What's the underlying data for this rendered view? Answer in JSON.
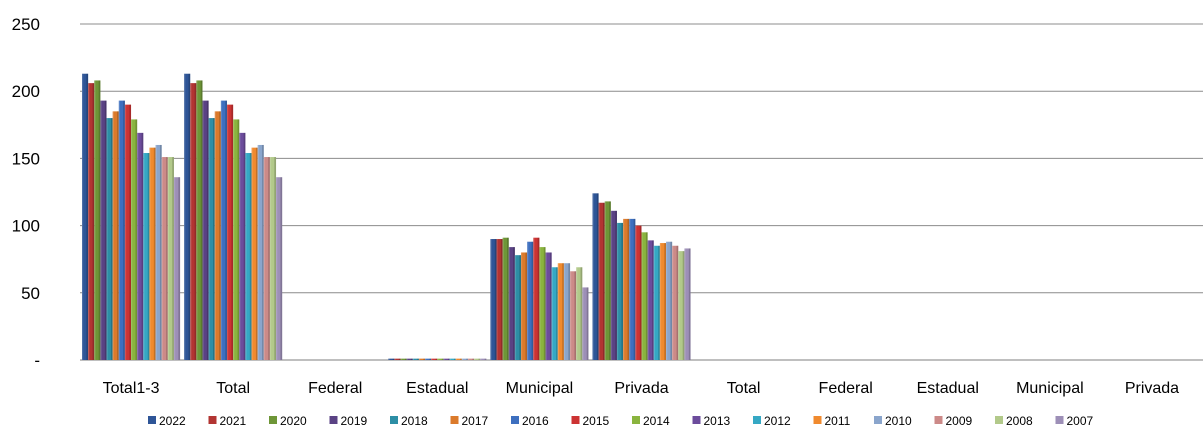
{
  "chart_data": {
    "type": "bar",
    "categories": [
      "Total1-3",
      "Total",
      "Federal",
      "Estadual",
      "Municipal",
      "Privada",
      "Total",
      "Federal",
      "Estadual",
      "Municipal",
      "Privada"
    ],
    "y_tick_labels": [
      "-",
      "50",
      "100",
      "150",
      "200",
      "250"
    ],
    "ylim": [
      0,
      250
    ],
    "grid": "horizontal",
    "legend_position": "bottom",
    "series": [
      {
        "name": "2022",
        "color": "#2e5597",
        "values": [
          213,
          213,
          0,
          1,
          90,
          124,
          0,
          0,
          0,
          0,
          0
        ]
      },
      {
        "name": "2021",
        "color": "#b23432",
        "values": [
          206,
          206,
          0,
          1,
          90,
          117,
          0,
          0,
          0,
          0,
          0
        ]
      },
      {
        "name": "2020",
        "color": "#6e9637",
        "values": [
          208,
          208,
          0,
          1,
          91,
          118,
          0,
          0,
          0,
          0,
          0
        ]
      },
      {
        "name": "2019",
        "color": "#5a4284",
        "values": [
          193,
          193,
          0,
          1,
          84,
          111,
          0,
          0,
          0,
          0,
          0
        ]
      },
      {
        "name": "2018",
        "color": "#2d8ea5",
        "values": [
          180,
          180,
          0,
          1,
          78,
          102,
          0,
          0,
          0,
          0,
          0
        ]
      },
      {
        "name": "2017",
        "color": "#db7a2b",
        "values": [
          185,
          185,
          0,
          1,
          80,
          105,
          0,
          0,
          0,
          0,
          0
        ]
      },
      {
        "name": "2016",
        "color": "#3d6fbf",
        "values": [
          193,
          193,
          0,
          1,
          88,
          105,
          0,
          0,
          0,
          0,
          0
        ]
      },
      {
        "name": "2015",
        "color": "#cc3333",
        "values": [
          190,
          190,
          0,
          1,
          91,
          100,
          0,
          0,
          0,
          0,
          0
        ]
      },
      {
        "name": "2014",
        "color": "#8ab43e",
        "values": [
          179,
          179,
          0,
          1,
          84,
          95,
          0,
          0,
          0,
          0,
          0
        ]
      },
      {
        "name": "2013",
        "color": "#6c4c9c",
        "values": [
          169,
          169,
          0,
          1,
          80,
          89,
          0,
          0,
          0,
          0,
          0
        ]
      },
      {
        "name": "2012",
        "color": "#35a8c4",
        "values": [
          154,
          154,
          0,
          1,
          69,
          85,
          0,
          0,
          0,
          0,
          0
        ]
      },
      {
        "name": "2011",
        "color": "#f08a2e",
        "values": [
          158,
          158,
          0,
          1,
          72,
          87,
          0,
          0,
          0,
          0,
          0
        ]
      },
      {
        "name": "2010",
        "color": "#8aa5cc",
        "values": [
          160,
          160,
          0,
          1,
          72,
          88,
          0,
          0,
          0,
          0,
          0
        ]
      },
      {
        "name": "2009",
        "color": "#cc8a88",
        "values": [
          151,
          151,
          0,
          1,
          66,
          85,
          0,
          0,
          0,
          0,
          0
        ]
      },
      {
        "name": "2008",
        "color": "#b2c98a",
        "values": [
          151,
          151,
          0,
          1,
          69,
          81,
          0,
          0,
          0,
          0,
          0
        ]
      },
      {
        "name": "2007",
        "color": "#9d8fb7",
        "values": [
          136,
          136,
          0,
          1,
          54,
          83,
          0,
          0,
          0,
          0,
          0
        ]
      }
    ]
  }
}
